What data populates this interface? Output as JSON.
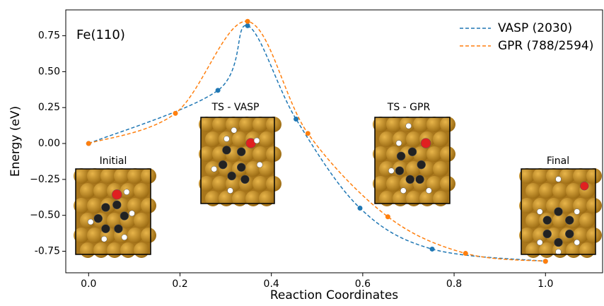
{
  "chart_data": {
    "type": "line",
    "xlabel": "Reaction Coordinates",
    "ylabel": "Energy (eV)",
    "xlim": [
      -0.05,
      1.125
    ],
    "ylim": [
      -0.9,
      0.93
    ],
    "xticks": [
      {
        "value": 0,
        "label": "0.0"
      },
      0.2,
      0.4,
      0.6,
      0.8,
      {
        "value": 1,
        "label": "1.0"
      }
    ],
    "yticks": [
      -0.75,
      {
        "value": -0.5,
        "label": "−0.50"
      },
      {
        "value": -0.25,
        "label": "−0.25"
      },
      {
        "value": 0,
        "label": "0.00"
      },
      0.25,
      {
        "value": 0.5,
        "label": "0.50"
      },
      0.75
    ],
    "legend": "upper right",
    "series": [
      {
        "name": "VASP (2030)",
        "color": "#1f77b4",
        "x": [
          0,
          0.283,
          0.348,
          0.454,
          0.594,
          0.752,
          1.0
        ],
        "values": [
          0,
          0.37,
          0.82,
          0.17,
          -0.45,
          -0.735,
          -0.82
        ]
      },
      {
        "name": "GPR (788/2594)",
        "color": "#ff7f0e",
        "x": [
          0,
          0.19,
          0.348,
          0.48,
          0.655,
          0.825,
          1.0
        ],
        "values": [
          0,
          0.21,
          0.85,
          0.07,
          -0.51,
          -0.765,
          -0.82
        ]
      }
    ],
    "annotations": [
      "Fe(110)",
      "Initial",
      "TS - VASP",
      "TS - GPR",
      "Final"
    ]
  }
}
